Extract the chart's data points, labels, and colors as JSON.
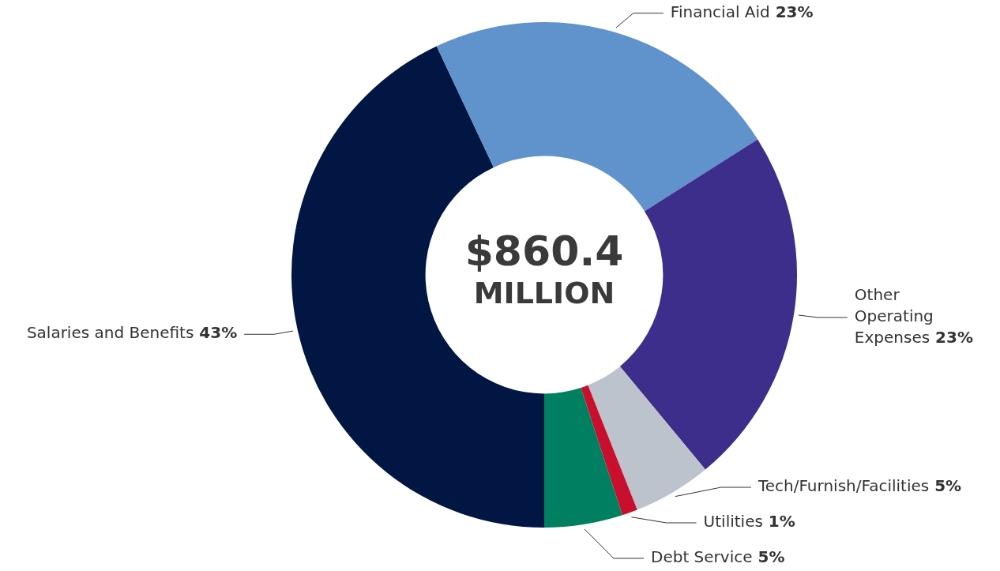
{
  "chart_data": {
    "type": "donut",
    "categories": [
      "Salaries and Benefits",
      "Financial Aid",
      "Other Operating Expenses",
      "Tech/Furnish/Facilities",
      "Utilities",
      "Debt Service"
    ],
    "values": [
      43,
      23,
      23,
      5,
      1,
      5
    ],
    "colors": [
      "#011642",
      "#6092cc",
      "#3d2e8b",
      "#bcc3cc",
      "#c8102e",
      "#008060"
    ],
    "value_labels": [
      "43%",
      "23%",
      "23%",
      "5%",
      "1%",
      "5%"
    ],
    "annotations": [
      "$860.4",
      "MILLION"
    ]
  }
}
